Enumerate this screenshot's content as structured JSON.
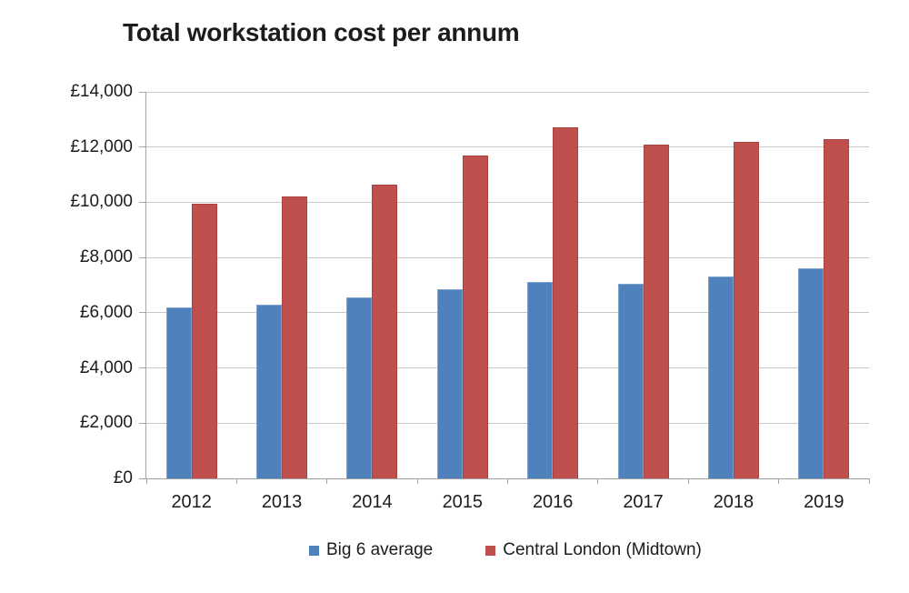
{
  "chart_data": {
    "type": "bar",
    "title": "Total workstation cost per annum",
    "categories": [
      "2012",
      "2013",
      "2014",
      "2015",
      "2016",
      "2017",
      "2018",
      "2019"
    ],
    "series": [
      {
        "name": "Big 6 average",
        "color": "#4F81BD",
        "values": [
          6200,
          6300,
          6550,
          6850,
          7100,
          7050,
          7300,
          7600
        ]
      },
      {
        "name": "Central London (Midtown)",
        "color": "#C0504D",
        "values": [
          9950,
          10200,
          10650,
          11700,
          12700,
          12100,
          12200,
          12300
        ]
      }
    ],
    "currency_prefix": "£",
    "ylim": [
      0,
      14000
    ],
    "ytick_step": 2000,
    "ytick_labels": [
      "£0",
      "£2,000",
      "£4,000",
      "£6,000",
      "£8,000",
      "£10,000",
      "£12,000",
      "£14,000"
    ],
    "xlabel": "",
    "ylabel": "",
    "grid": true,
    "legend_position": "bottom",
    "colors": {
      "grid": "#C8C8C8",
      "axis": "#A6A6A6",
      "text": "#1C1C1C",
      "background": "#FFFFFF"
    }
  }
}
